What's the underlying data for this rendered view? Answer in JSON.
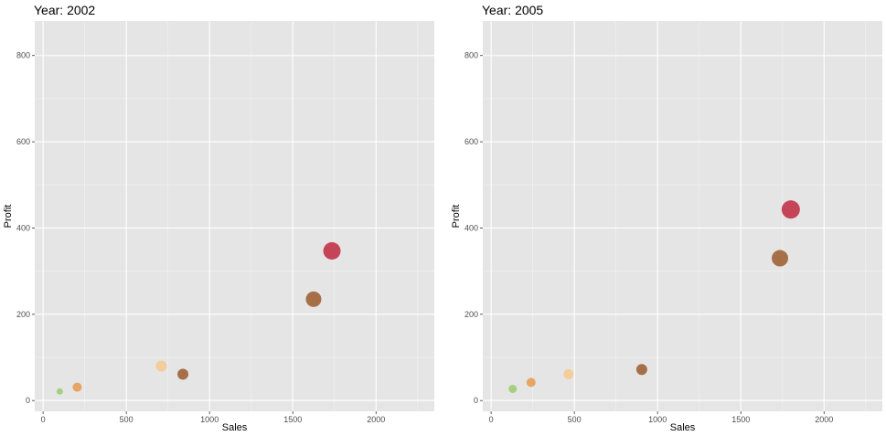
{
  "chart_data": [
    {
      "type": "scatter",
      "title": "Year: 2002",
      "xlabel": "Sales",
      "ylabel": "Profit",
      "xlim": [
        -50,
        2350
      ],
      "ylim": [
        -25,
        880
      ],
      "xticks": [
        0,
        500,
        1000,
        1500,
        2000
      ],
      "yticks": [
        0,
        200,
        400,
        600,
        800
      ],
      "points": [
        {
          "x": 100,
          "y": 21,
          "size": 3.5,
          "color": "#9acd6f"
        },
        {
          "x": 205,
          "y": 31,
          "size": 5,
          "color": "#e89a4f"
        },
        {
          "x": 710,
          "y": 80,
          "size": 6,
          "color": "#f8c98e"
        },
        {
          "x": 840,
          "y": 61,
          "size": 6,
          "color": "#9c5a2c"
        },
        {
          "x": 1625,
          "y": 235,
          "size": 8.5,
          "color": "#9c5a2c"
        },
        {
          "x": 1735,
          "y": 347,
          "size": 9.5,
          "color": "#c0283f"
        }
      ]
    },
    {
      "type": "scatter",
      "title": "Year: 2005",
      "xlabel": "Sales",
      "ylabel": "Profit",
      "xlim": [
        -50,
        2350
      ],
      "ylim": [
        -25,
        880
      ],
      "xticks": [
        0,
        500,
        1000,
        1500,
        2000
      ],
      "yticks": [
        0,
        200,
        400,
        600,
        800
      ],
      "points": [
        {
          "x": 130,
          "y": 27,
          "size": 4.5,
          "color": "#9acd6f"
        },
        {
          "x": 240,
          "y": 42,
          "size": 5,
          "color": "#e89a4f"
        },
        {
          "x": 465,
          "y": 61,
          "size": 5.5,
          "color": "#f8c98e"
        },
        {
          "x": 905,
          "y": 72,
          "size": 6,
          "color": "#9c5a2c"
        },
        {
          "x": 1735,
          "y": 330,
          "size": 9,
          "color": "#9c5a2c"
        },
        {
          "x": 1800,
          "y": 443,
          "size": 10,
          "color": "#c0283f"
        }
      ]
    }
  ]
}
